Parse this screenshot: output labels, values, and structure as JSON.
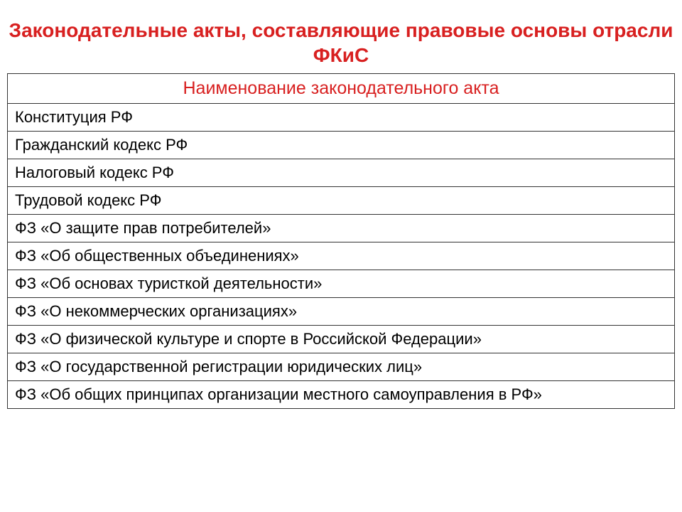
{
  "title": {
    "text": "Законодательные акты, составляющие правовые основы отрасли ФКиС",
    "color": "#d82020",
    "fontsize": 28,
    "fontweight": "bold"
  },
  "table": {
    "type": "table",
    "header": {
      "text": "Наименование законодательного акта",
      "color": "#d82020",
      "fontsize": 25
    },
    "rows": [
      "Конституция РФ",
      "Гражданский кодекс РФ",
      "Налоговый кодекс РФ",
      "Трудовой кодекс РФ",
      "ФЗ «О защите прав потребителей»",
      "ФЗ «Об общественных объединениях»",
      "ФЗ «Об основах туристкой деятельности»",
      "ФЗ «О некоммерческих организациях»",
      "ФЗ «О физической культуре и спорте в Российской Федерации»",
      "ФЗ «О государственной регистрации юридических лиц»",
      "ФЗ «Об общих принципах организации местного самоуправления в РФ»"
    ],
    "row_fontsize": 22,
    "row_color": "#000000",
    "border_color": "#333333",
    "background_color": "#ffffff"
  }
}
